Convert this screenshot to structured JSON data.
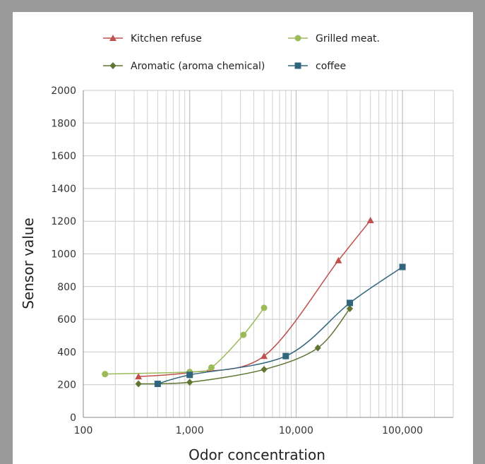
{
  "chart_data": {
    "type": "line",
    "title": "",
    "xlabel": "Odor concentration",
    "ylabel": "Sensor value",
    "x_scale": "log",
    "xlim": [
      100,
      300000
    ],
    "ylim": [
      0,
      2000
    ],
    "grid": true,
    "legend_position": "top",
    "x_ticks": [
      {
        "value": 100,
        "label": "100"
      },
      {
        "value": 1000,
        "label": "1,000"
      },
      {
        "value": 10000,
        "label": "10,000"
      },
      {
        "value": 100000,
        "label": "100,000"
      }
    ],
    "y_ticks": [
      {
        "value": 0,
        "label": "0"
      },
      {
        "value": 200,
        "label": "200"
      },
      {
        "value": 400,
        "label": "400"
      },
      {
        "value": 600,
        "label": "600"
      },
      {
        "value": 800,
        "label": "800"
      },
      {
        "value": 1000,
        "label": "1000"
      },
      {
        "value": 1200,
        "label": "1200"
      },
      {
        "value": 1400,
        "label": "1400"
      },
      {
        "value": 1600,
        "label": "1600"
      },
      {
        "value": 1800,
        "label": "1800"
      },
      {
        "value": 2000,
        "label": "2000"
      }
    ],
    "series": [
      {
        "name": "Kitchen refuse",
        "color": "#c0504d",
        "marker": "triangle",
        "points": [
          [
            330,
            250
          ],
          [
            1000,
            275
          ],
          [
            5000,
            375
          ],
          [
            25000,
            960
          ],
          [
            50000,
            1205
          ]
        ]
      },
      {
        "name": "Grilled meat.",
        "color": "#9bbb59",
        "marker": "circle",
        "points": [
          [
            160,
            265
          ],
          [
            1000,
            278
          ],
          [
            1600,
            305
          ],
          [
            3200,
            505
          ],
          [
            5000,
            670
          ]
        ]
      },
      {
        "name": "Aromatic (aroma chemical)",
        "color": "#5f7530",
        "marker": "diamond",
        "points": [
          [
            330,
            205
          ],
          [
            1000,
            215
          ],
          [
            5000,
            293
          ],
          [
            16000,
            425
          ],
          [
            32000,
            665
          ]
        ]
      },
      {
        "name": "coffee",
        "color": "#31657e",
        "marker": "square",
        "points": [
          [
            500,
            205
          ],
          [
            1000,
            260
          ],
          [
            8000,
            375
          ],
          [
            32000,
            700
          ],
          [
            100000,
            920
          ]
        ]
      }
    ]
  }
}
